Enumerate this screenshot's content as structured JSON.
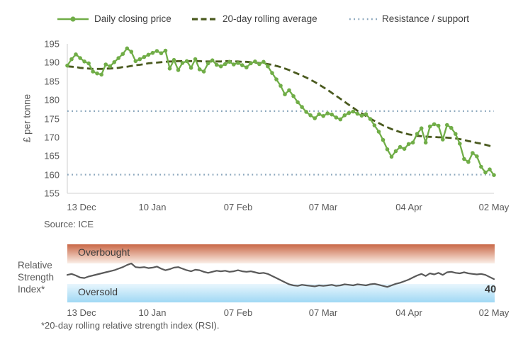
{
  "legend": {
    "items": [
      {
        "label": "Daily closing price"
      },
      {
        "label": "20-day rolling average"
      },
      {
        "label": "Resistance / support"
      }
    ]
  },
  "colors": {
    "price": "#70ad47",
    "average": "#4a5a1f",
    "resistance_support": "#8ba7bd",
    "rsi_line": "#595959",
    "overbought_top": "#c96746",
    "overbought_bottom": "#fbeee7",
    "oversold_top": "#e8f6fd",
    "oversold_bottom": "#a0d8f4",
    "axis_line": "#d9d9d9",
    "text": "#595959"
  },
  "chart_data": [
    {
      "type": "line",
      "title": "",
      "xlabel": "",
      "ylabel": "£ per tonne",
      "ylim": [
        155,
        195
      ],
      "yticks": [
        195,
        190,
        185,
        180,
        175,
        170,
        165,
        160,
        155
      ],
      "xticklabels": [
        "13 Dec",
        "10 Jan",
        "07 Feb",
        "07 Mar",
        "04 Apr",
        "02 May"
      ],
      "resistance": 177,
      "support": 160,
      "grid": false,
      "legend_position": "top",
      "series": [
        {
          "name": "Daily closing price",
          "style": "solid-with-markers",
          "color": "#70ad47",
          "values": [
            189.2,
            190.9,
            192.2,
            191.2,
            190.3,
            189.8,
            187.6,
            187.1,
            186.8,
            189.5,
            189.0,
            190.1,
            191.2,
            192.3,
            193.8,
            192.9,
            190.4,
            190.9,
            191.5,
            192.1,
            192.6,
            193.1,
            192.5,
            193.2,
            188.4,
            190.7,
            188.0,
            189.9,
            190.4,
            188.6,
            190.9,
            188.2,
            187.6,
            189.8,
            190.6,
            189.4,
            189.0,
            189.6,
            190.2,
            189.5,
            189.9,
            189.3,
            188.7,
            189.8,
            190.3,
            189.6,
            190.2,
            189.0,
            187.2,
            185.5,
            183.8,
            181.5,
            182.6,
            181.0,
            179.4,
            178.1,
            176.8,
            175.9,
            175.1,
            176.2,
            175.7,
            176.4,
            176.1,
            175.3,
            174.8,
            175.9,
            176.5,
            176.9,
            176.3,
            175.8,
            176.2,
            174.9,
            173.2,
            171.5,
            169.3,
            166.8,
            164.8,
            166.3,
            167.4,
            166.9,
            168.2,
            168.6,
            170.9,
            172.4,
            168.6,
            172.9,
            173.5,
            173.1,
            169.4,
            173.3,
            172.5,
            170.9,
            168.3,
            164.2,
            163.4,
            165.8,
            164.9,
            162.1,
            160.6,
            161.4,
            159.9
          ]
        },
        {
          "name": "20-day rolling average",
          "style": "dashed",
          "color": "#4a5a1f",
          "values": [
            189.0,
            188.9,
            188.8,
            188.6,
            188.5,
            188.4,
            188.3,
            188.3,
            188.3,
            188.4,
            188.4,
            188.5,
            188.6,
            188.8,
            188.9,
            189.1,
            189.3,
            189.4,
            189.6,
            189.8,
            189.9,
            190.0,
            190.1,
            190.2,
            190.3,
            190.3,
            190.4,
            190.4,
            190.4,
            190.4,
            190.4,
            190.4,
            190.3,
            190.3,
            190.3,
            190.3,
            190.3,
            190.4,
            190.4,
            190.3,
            190.3,
            190.2,
            190.2,
            190.1,
            190.0,
            189.9,
            189.8,
            189.6,
            189.4,
            189.1,
            188.8,
            188.4,
            188.0,
            187.5,
            187.0,
            186.5,
            186.0,
            185.4,
            184.8,
            184.1,
            183.4,
            182.7,
            181.9,
            181.1,
            180.3,
            179.5,
            178.7,
            177.9,
            177.1,
            176.4,
            175.7,
            175.0,
            174.4,
            173.8,
            173.2,
            172.7,
            172.2,
            171.8,
            171.4,
            171.1,
            170.8,
            170.6,
            170.4,
            170.3,
            170.2,
            170.1,
            170.1,
            170.0,
            170.0,
            169.9,
            169.8,
            169.7,
            169.5,
            169.3,
            169.0,
            168.8,
            168.5,
            168.3,
            168.0,
            167.7,
            167.5
          ]
        },
        {
          "name": "Resistance / support",
          "style": "dotted",
          "color": "#8ba7bd",
          "values": [
            177,
            160
          ]
        }
      ],
      "source": "Source: ICE"
    },
    {
      "type": "line",
      "title": "",
      "ylabel": "Relative\nStrength\nIndex*",
      "bands": [
        {
          "label": "Overbought",
          "range": [
            70,
            100
          ]
        },
        {
          "label": "Oversold",
          "range": [
            0,
            30
          ]
        }
      ],
      "xticklabels": [
        "13 Dec",
        "10 Jan",
        "07 Feb",
        "07 Mar",
        "04 Apr",
        "02 May"
      ],
      "last_value": 40,
      "grid": false,
      "series": [
        {
          "name": "20-day rolling RSI",
          "color": "#595959",
          "values": [
            48,
            50,
            47,
            43,
            42,
            45,
            47,
            49,
            51,
            53,
            55,
            57,
            60,
            63,
            67,
            70,
            63,
            62,
            63,
            61,
            62,
            64,
            60,
            57,
            59,
            62,
            63,
            60,
            57,
            55,
            58,
            57,
            54,
            52,
            54,
            56,
            55,
            56,
            54,
            55,
            57,
            55,
            54,
            55,
            53,
            51,
            52,
            50,
            46,
            42,
            38,
            34,
            30,
            28,
            27,
            29,
            28,
            27,
            26,
            28,
            27,
            28,
            29,
            27,
            28,
            30,
            29,
            28,
            30,
            29,
            28,
            30,
            31,
            29,
            27,
            25,
            28,
            31,
            33,
            36,
            39,
            43,
            47,
            50,
            46,
            51,
            49,
            52,
            48,
            53,
            54,
            52,
            51,
            53,
            51,
            50,
            49,
            50,
            48,
            44,
            40
          ]
        }
      ],
      "footnote": "*20-day rolling relative strength index (RSI)."
    }
  ]
}
